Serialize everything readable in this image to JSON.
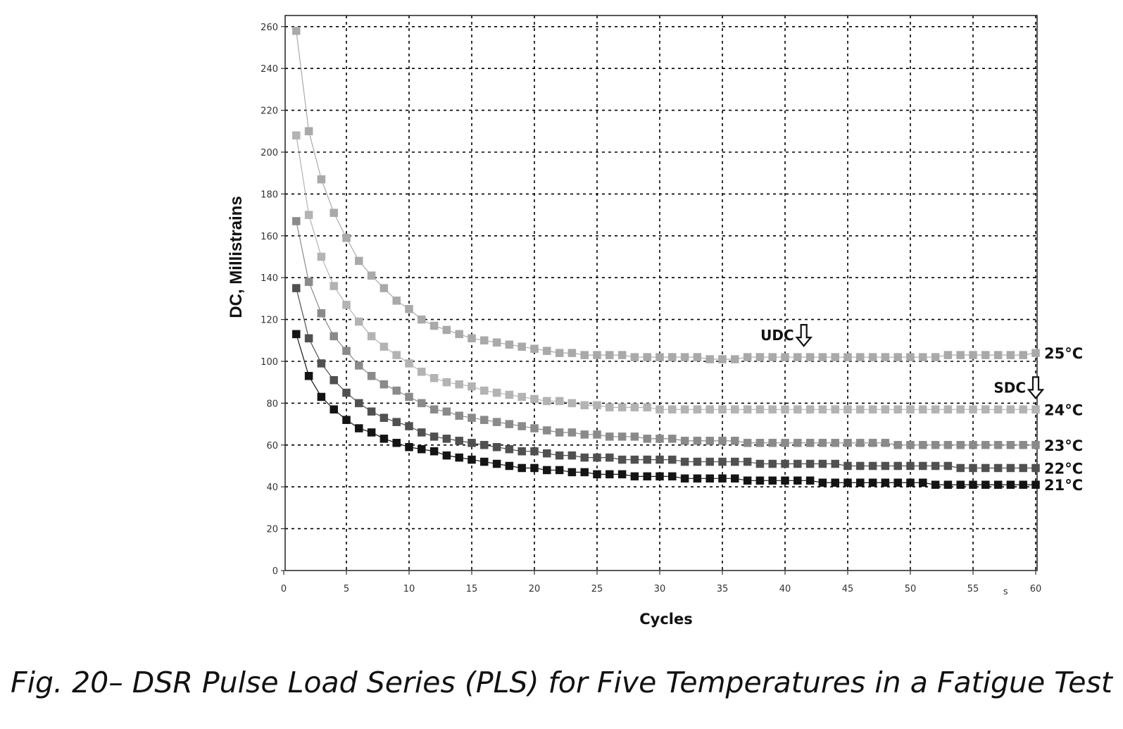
{
  "caption": "Fig. 20– DSR Pulse Load Series (PLS) for Five Temperatures in a Fatigue Test",
  "chart_data": {
    "type": "scatter",
    "title": "",
    "xlabel": "Cycles",
    "ylabel": "DC, Millistrains",
    "xlim": [
      0,
      60
    ],
    "ylim": [
      0,
      265
    ],
    "x_ticks": [
      "0",
      "5",
      "10",
      "15",
      "20",
      "25",
      "30",
      "35",
      "40",
      "45",
      "50",
      "55",
      "60"
    ],
    "y_ticks": [
      "0",
      "20",
      "40",
      "60",
      "80",
      "100",
      "120",
      "140",
      "160",
      "180",
      "200",
      "220",
      "240",
      "260"
    ],
    "x_extra_label": "s",
    "grid": true,
    "marker": "square",
    "series": [
      {
        "name": "25°C",
        "color": "#a9a9a9",
        "x": [
          1,
          2,
          3,
          4,
          5,
          6,
          7,
          8,
          9,
          10,
          11,
          12,
          13,
          14,
          15,
          16,
          17,
          18,
          19,
          20,
          21,
          22,
          23,
          24,
          25,
          26,
          27,
          28,
          29,
          30,
          31,
          32,
          33,
          34,
          35,
          36,
          37,
          38,
          39,
          40,
          41,
          42,
          43,
          44,
          45,
          46,
          47,
          48,
          49,
          50,
          51,
          52,
          53,
          54,
          55,
          56,
          57,
          58,
          59,
          60
        ],
        "y": [
          258,
          210,
          187,
          171,
          159,
          148,
          141,
          135,
          129,
          125,
          120,
          117,
          115,
          113,
          111,
          110,
          109,
          108,
          107,
          106,
          105,
          104,
          104,
          103,
          103,
          103,
          103,
          102,
          102,
          102,
          102,
          102,
          102,
          101,
          101,
          101,
          102,
          102,
          102,
          102,
          102,
          102,
          102,
          102,
          102,
          102,
          102,
          102,
          102,
          102,
          102,
          102,
          103,
          103,
          103,
          103,
          103,
          103,
          103,
          104
        ]
      },
      {
        "name": "24°C",
        "color": "#b3b3b3",
        "x": [
          1,
          2,
          3,
          4,
          5,
          6,
          7,
          8,
          9,
          10,
          11,
          12,
          13,
          14,
          15,
          16,
          17,
          18,
          19,
          20,
          21,
          22,
          23,
          24,
          25,
          26,
          27,
          28,
          29,
          30,
          31,
          32,
          33,
          34,
          35,
          36,
          37,
          38,
          39,
          40,
          41,
          42,
          43,
          44,
          45,
          46,
          47,
          48,
          49,
          50,
          51,
          52,
          53,
          54,
          55,
          56,
          57,
          58,
          59,
          60
        ],
        "y": [
          208,
          170,
          150,
          136,
          127,
          119,
          112,
          107,
          103,
          99,
          95,
          92,
          90,
          89,
          88,
          86,
          85,
          84,
          83,
          82,
          81,
          81,
          80,
          79,
          79,
          78,
          78,
          78,
          78,
          77,
          77,
          77,
          77,
          77,
          77,
          77,
          77,
          77,
          77,
          77,
          77,
          77,
          77,
          77,
          77,
          77,
          77,
          77,
          77,
          77,
          77,
          77,
          77,
          77,
          77,
          77,
          77,
          77,
          77,
          77
        ]
      },
      {
        "name": "23°C",
        "color": "#8a8a8a",
        "x": [
          1,
          2,
          3,
          4,
          5,
          6,
          7,
          8,
          9,
          10,
          11,
          12,
          13,
          14,
          15,
          16,
          17,
          18,
          19,
          20,
          21,
          22,
          23,
          24,
          25,
          26,
          27,
          28,
          29,
          30,
          31,
          32,
          33,
          34,
          35,
          36,
          37,
          38,
          39,
          40,
          41,
          42,
          43,
          44,
          45,
          46,
          47,
          48,
          49,
          50,
          51,
          52,
          53,
          54,
          55,
          56,
          57,
          58,
          59,
          60
        ],
        "y": [
          167,
          138,
          123,
          112,
          105,
          98,
          93,
          89,
          86,
          83,
          80,
          77,
          76,
          74,
          73,
          72,
          71,
          70,
          69,
          68,
          67,
          66,
          66,
          65,
          65,
          64,
          64,
          64,
          63,
          63,
          63,
          62,
          62,
          62,
          62,
          62,
          61,
          61,
          61,
          61,
          61,
          61,
          61,
          61,
          61,
          61,
          61,
          61,
          60,
          60,
          60,
          60,
          60,
          60,
          60,
          60,
          60,
          60,
          60,
          60
        ]
      },
      {
        "name": "22°C",
        "color": "#505050",
        "x": [
          1,
          2,
          3,
          4,
          5,
          6,
          7,
          8,
          9,
          10,
          11,
          12,
          13,
          14,
          15,
          16,
          17,
          18,
          19,
          20,
          21,
          22,
          23,
          24,
          25,
          26,
          27,
          28,
          29,
          30,
          31,
          32,
          33,
          34,
          35,
          36,
          37,
          38,
          39,
          40,
          41,
          42,
          43,
          44,
          45,
          46,
          47,
          48,
          49,
          50,
          51,
          52,
          53,
          54,
          55,
          56,
          57,
          58,
          59,
          60
        ],
        "y": [
          135,
          111,
          99,
          91,
          85,
          80,
          76,
          73,
          71,
          69,
          66,
          64,
          63,
          62,
          61,
          60,
          59,
          58,
          57,
          57,
          56,
          55,
          55,
          54,
          54,
          54,
          53,
          53,
          53,
          53,
          53,
          52,
          52,
          52,
          52,
          52,
          52,
          51,
          51,
          51,
          51,
          51,
          51,
          51,
          50,
          50,
          50,
          50,
          50,
          50,
          50,
          50,
          50,
          49,
          49,
          49,
          49,
          49,
          49,
          49
        ]
      },
      {
        "name": "21°C",
        "color": "#141414",
        "x": [
          1,
          2,
          3,
          4,
          5,
          6,
          7,
          8,
          9,
          10,
          11,
          12,
          13,
          14,
          15,
          16,
          17,
          18,
          19,
          20,
          21,
          22,
          23,
          24,
          25,
          26,
          27,
          28,
          29,
          30,
          31,
          32,
          33,
          34,
          35,
          36,
          37,
          38,
          39,
          40,
          41,
          42,
          43,
          44,
          45,
          46,
          47,
          48,
          49,
          50,
          51,
          52,
          53,
          54,
          55,
          56,
          57,
          58,
          59,
          60
        ],
        "y": [
          113,
          93,
          83,
          77,
          72,
          68,
          66,
          63,
          61,
          59,
          58,
          57,
          55,
          54,
          53,
          52,
          51,
          50,
          49,
          49,
          48,
          48,
          47,
          47,
          46,
          46,
          46,
          45,
          45,
          45,
          45,
          44,
          44,
          44,
          44,
          44,
          43,
          43,
          43,
          43,
          43,
          43,
          42,
          42,
          42,
          42,
          42,
          42,
          42,
          42,
          42,
          41,
          41,
          41,
          41,
          41,
          41,
          41,
          41,
          41
        ]
      }
    ],
    "annotations": [
      {
        "text": "UDC",
        "arrow": "down",
        "x": 41.5,
        "y": 104
      },
      {
        "text": "SDC",
        "arrow": "down",
        "x": 60,
        "y": 79
      }
    ]
  }
}
